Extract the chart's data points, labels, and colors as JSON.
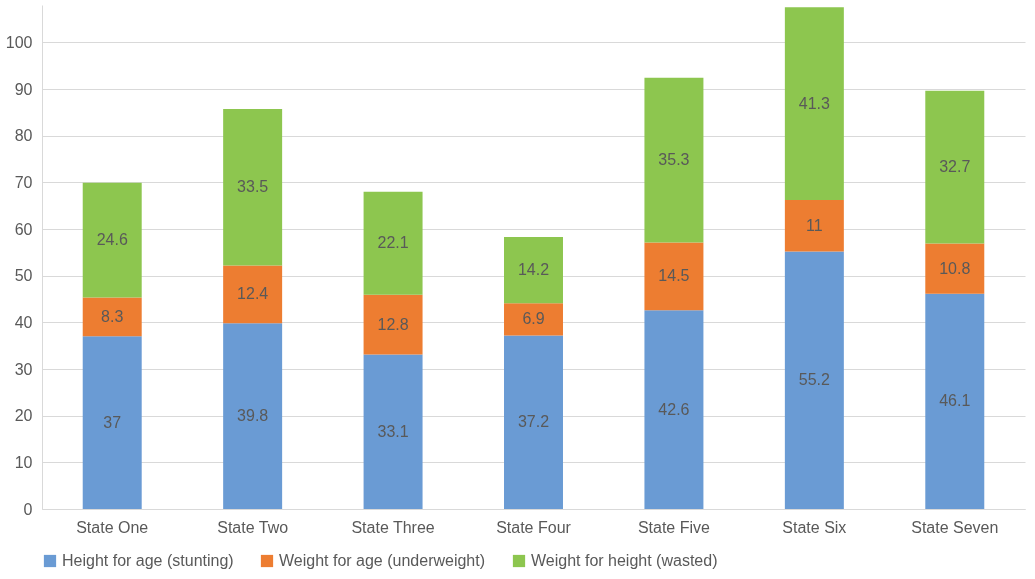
{
  "chart_data": {
    "type": "bar",
    "stacked": true,
    "categories": [
      "State One",
      "State Two",
      "State Three",
      "State Four",
      "State Five",
      "State Six",
      "State Seven"
    ],
    "series": [
      {
        "name": "Height for age (stunting)",
        "color": "#6a9bd4",
        "values": [
          37,
          39.8,
          33.1,
          37.2,
          42.6,
          55.2,
          46.1
        ]
      },
      {
        "name": "Weight for age (underweight)",
        "color": "#ed7d31",
        "values": [
          8.3,
          12.4,
          12.8,
          6.9,
          14.5,
          11,
          10.8
        ]
      },
      {
        "name": "Weight for height (wasted)",
        "color": "#8dc64f",
        "values": [
          24.6,
          33.5,
          22.1,
          14.2,
          35.3,
          41.3,
          32.7
        ]
      }
    ],
    "ylim": [
      0,
      108
    ],
    "yticks": [
      0,
      10,
      20,
      30,
      40,
      50,
      60,
      70,
      80,
      90,
      100
    ],
    "grid": "y",
    "legend": "bottom",
    "data_labels": true
  }
}
